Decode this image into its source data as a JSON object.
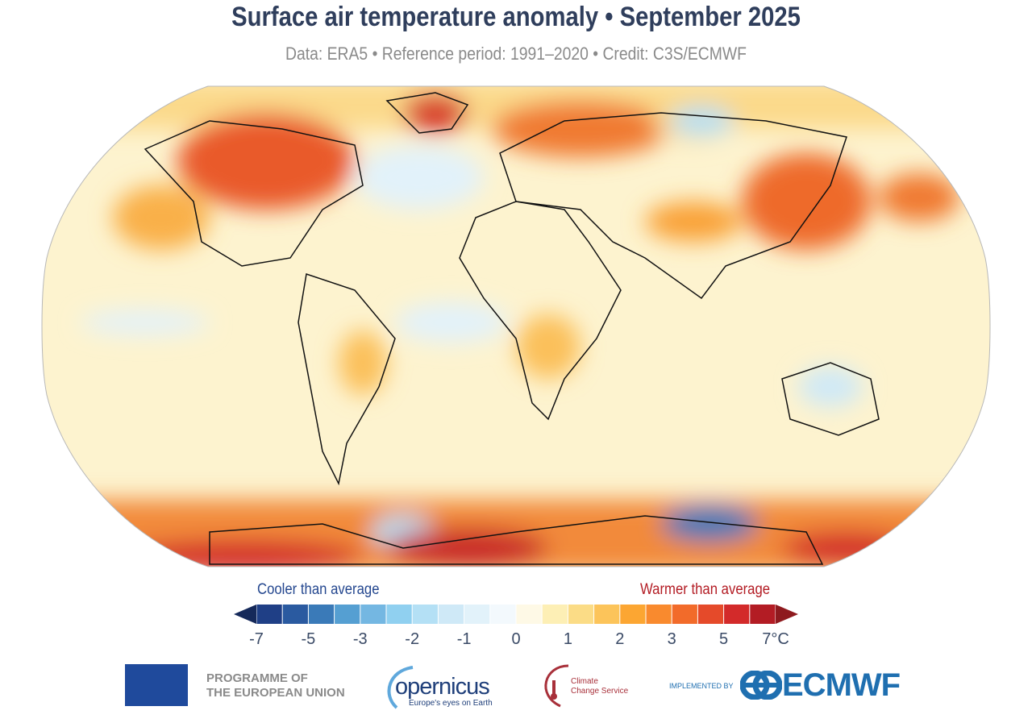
{
  "header": {
    "title": "Surface air temperature anomaly • September 2025",
    "subtitle": "Data: ERA5 • Reference period: 1991–2020 • Credit: C3S/ECMWF"
  },
  "map": {
    "projection": "Robinson",
    "base_color": "#fdf3cf"
  },
  "colorbar": {
    "cool_label": "Cooler than average",
    "warm_label": "Warmer than average",
    "min_arrow_color": "#15295a",
    "max_arrow_color": "#8e1a1e",
    "colors": [
      "#1f3f86",
      "#2a5aa0",
      "#3a7ab8",
      "#559fd2",
      "#74b7e2",
      "#90d0f0",
      "#b4e0f5",
      "#cfe9f7",
      "#e2f2fa",
      "#f3f9fd",
      "#fef9e6",
      "#fdefb5",
      "#fbdc86",
      "#fcc45a",
      "#fca632",
      "#f98a2e",
      "#f26b2a",
      "#e54a2a",
      "#d32a2a",
      "#b31c24"
    ],
    "ticks": [
      "-7",
      "-5",
      "-3",
      "-2",
      "-1",
      "0",
      "1",
      "2",
      "3",
      "5",
      "7°C"
    ]
  },
  "footer": {
    "eu": "PROGRAMME OF\nTHE EUROPEAN UNION",
    "eu_line1": "PROGRAMME OF",
    "eu_line2": "THE EUROPEAN UNION",
    "copernicus": "opernicus",
    "copernicus_tagline": "Europe's eyes on Earth",
    "c3s_line1": "Climate",
    "c3s_line2": "Change Service",
    "implemented_by": "IMPLEMENTED BY",
    "ecmwf": "ECMWF"
  }
}
